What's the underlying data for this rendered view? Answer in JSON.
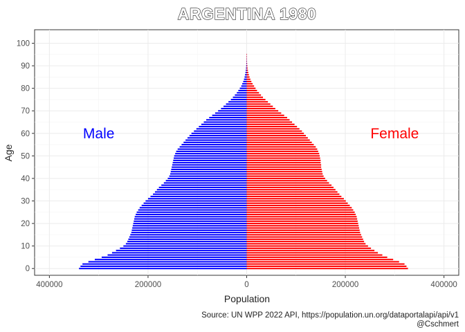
{
  "chart_data": {
    "type": "bar",
    "orientation": "horizontal",
    "title": "ARGENTINA 1980",
    "xlabel": "Population",
    "ylabel": "Age",
    "xlim": [
      -430000,
      430000
    ],
    "ylim": [
      -3,
      106
    ],
    "x_ticks": [
      -400000,
      -200000,
      0,
      200000,
      400000
    ],
    "x_tick_labels": [
      "400000",
      "200000",
      "0",
      "200000",
      "400000"
    ],
    "y_ticks": [
      0,
      10,
      20,
      30,
      40,
      50,
      60,
      70,
      80,
      90,
      100
    ],
    "y_tick_labels": [
      "0",
      "10",
      "20",
      "30",
      "40",
      "50",
      "60",
      "70",
      "80",
      "90",
      "100"
    ],
    "grid": true,
    "legend": "none",
    "caption": [
      "Source: UN WPP 2022 API, https://population.un.org/dataportalapi/api/v1",
      "@Cschmert"
    ],
    "annotations": [
      {
        "text": "Male",
        "x": -300000,
        "y": 60,
        "color": "#0000ff"
      },
      {
        "text": "Female",
        "x": 300000,
        "y": 60,
        "color": "#ff0000"
      }
    ],
    "categories": [
      0,
      1,
      2,
      3,
      4,
      5,
      6,
      7,
      8,
      9,
      10,
      11,
      12,
      13,
      14,
      15,
      16,
      17,
      18,
      19,
      20,
      21,
      22,
      23,
      24,
      25,
      26,
      27,
      28,
      29,
      30,
      31,
      32,
      33,
      34,
      35,
      36,
      37,
      38,
      39,
      40,
      41,
      42,
      43,
      44,
      45,
      46,
      47,
      48,
      49,
      50,
      51,
      52,
      53,
      54,
      55,
      56,
      57,
      58,
      59,
      60,
      61,
      62,
      63,
      64,
      65,
      66,
      67,
      68,
      69,
      70,
      71,
      72,
      73,
      74,
      75,
      76,
      77,
      78,
      79,
      80,
      81,
      82,
      83,
      84,
      85,
      86,
      87,
      88,
      89,
      90,
      91,
      92,
      93,
      94,
      95
    ],
    "series": [
      {
        "name": "Male",
        "color": "#0000ff",
        "values": [
          340000,
          337000,
          333000,
          321000,
          308000,
          294000,
          282000,
          273000,
          265000,
          257000,
          250000,
          245000,
          242000,
          240000,
          238000,
          236000,
          234000,
          233000,
          232000,
          231000,
          230000,
          229000,
          228000,
          227000,
          225000,
          223000,
          220000,
          217000,
          213000,
          209000,
          205000,
          200000,
          195000,
          190000,
          186000,
          182000,
          178000,
          173000,
          168000,
          164000,
          160000,
          157000,
          155000,
          154000,
          153000,
          152000,
          151000,
          150000,
          149000,
          148000,
          147000,
          145000,
          143000,
          140000,
          136000,
          132000,
          128000,
          124000,
          120000,
          116000,
          112000,
          107000,
          102000,
          97000,
          92000,
          87000,
          82000,
          76000,
          70000,
          64000,
          58000,
          52000,
          47000,
          42000,
          37000,
          32000,
          28000,
          24000,
          20000,
          17000,
          14000,
          11000,
          9000,
          7000,
          5500,
          4300,
          3300,
          2500,
          1900,
          1400,
          1000,
          700,
          500,
          300,
          200,
          100
        ]
      },
      {
        "name": "Female",
        "color": "#ff0000",
        "values": [
          327000,
          324000,
          320000,
          309000,
          297000,
          285000,
          275000,
          266000,
          259000,
          252000,
          246000,
          241000,
          238000,
          236000,
          234000,
          232000,
          230000,
          229000,
          228000,
          227000,
          226000,
          225000,
          224000,
          223000,
          221000,
          219000,
          216000,
          213000,
          209000,
          205000,
          201000,
          197000,
          192000,
          188000,
          184000,
          180000,
          176000,
          172000,
          167000,
          163000,
          159000,
          156000,
          154000,
          153000,
          152000,
          151000,
          151000,
          150000,
          150000,
          149000,
          148000,
          147000,
          145000,
          143000,
          140000,
          136000,
          132000,
          128000,
          124000,
          120000,
          116000,
          112000,
          107000,
          102000,
          97000,
          92000,
          87000,
          82000,
          76000,
          70000,
          64000,
          58000,
          53000,
          48000,
          43000,
          38000,
          33000,
          29000,
          25000,
          21000,
          18000,
          15000,
          12000,
          9500,
          7500,
          5800,
          4400,
          3300,
          2500,
          1800,
          1300,
          900,
          600,
          400,
          250,
          150
        ]
      }
    ]
  }
}
